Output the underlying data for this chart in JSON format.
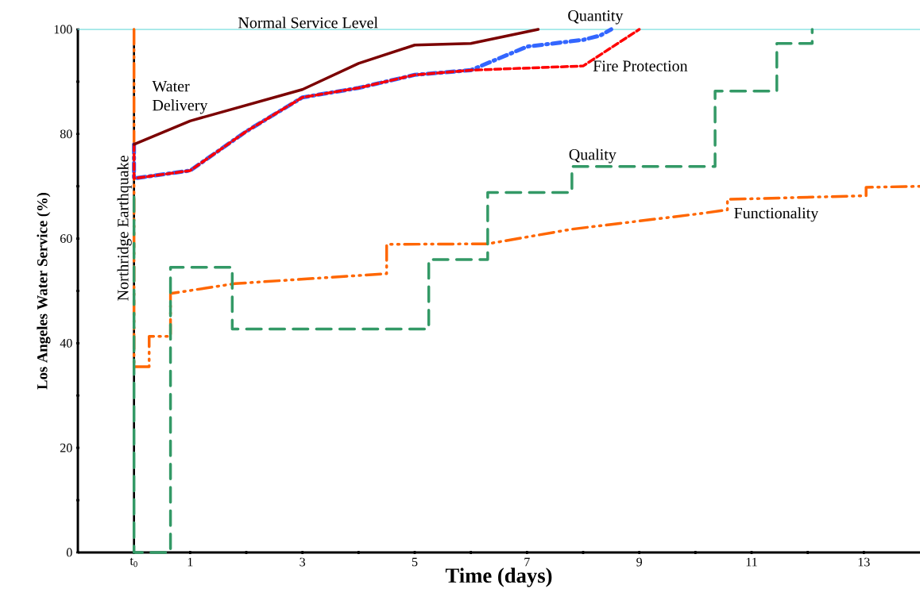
{
  "chart_data": {
    "type": "line",
    "xlabel": "Time (days)",
    "ylabel": "Los Angeles Water Service (%)",
    "xlim": [
      -1,
      14
    ],
    "ylim": [
      0,
      100
    ],
    "xticks": [
      {
        "value": 0,
        "label": "t$_{0}$"
      },
      1,
      {
        "value": 2,
        "label": null
      },
      3,
      {
        "value": 4,
        "label": null
      },
      5,
      {
        "value": 6,
        "label": null
      },
      7,
      {
        "value": 8,
        "label": null
      },
      9,
      {
        "value": 10,
        "label": null
      },
      11,
      {
        "value": 12,
        "label": null
      },
      13
    ],
    "yticks": [
      0,
      {
        "value": 10,
        "label": null
      },
      20,
      {
        "value": 30,
        "label": null
      },
      40,
      {
        "value": 50,
        "label": null
      },
      60,
      {
        "value": 70,
        "label": null
      },
      80,
      {
        "value": 90,
        "label": null
      },
      100
    ],
    "grid": false,
    "marker": "none",
    "ref_lines": [
      {
        "axis": "y",
        "value": 100,
        "label": "Normal Service Level",
        "color": "#80e0e0",
        "line_style": "solid"
      },
      {
        "axis": "x",
        "value": 0,
        "label": "Northridge Earthquake",
        "color": "#000000",
        "line_style": "solid"
      }
    ],
    "series": [
      {
        "name": "Water Delivery",
        "color": "#7b0000",
        "line_style": "solid",
        "x": [
          0,
          1,
          3,
          4,
          5,
          6,
          7.2
        ],
        "values": [
          78,
          82.5,
          88.5,
          93.5,
          97,
          97.3,
          100
        ]
      },
      {
        "name": "Fire Protection",
        "color": "#ff0000",
        "line_style": "dashed",
        "x": [
          0,
          0,
          1,
          2,
          3,
          4,
          5,
          6,
          8,
          9
        ],
        "values": [
          78,
          71.5,
          73,
          80.5,
          87,
          88.8,
          91.3,
          92.2,
          93,
          100
        ]
      },
      {
        "name": "Quantity",
        "color": "#3366ff",
        "line_style": "dash-dot",
        "x": [
          0,
          0,
          1,
          2,
          3,
          4,
          5,
          6,
          7,
          8,
          8.3,
          8.5
        ],
        "values": [
          78,
          71.5,
          73,
          80.5,
          87,
          88.8,
          91.3,
          92.2,
          96.7,
          98,
          98.8,
          100
        ]
      },
      {
        "name": "Quality",
        "color": "#339966",
        "line_style": "long-dashed",
        "x": [
          0,
          0,
          0.65,
          0.65,
          1.75,
          1.75,
          5.25,
          5.25,
          6.3,
          6.3,
          7.8,
          7.8,
          10.35,
          10.35,
          11.45,
          11.45,
          12.08,
          12.08
        ],
        "values": [
          68,
          0,
          0,
          54.5,
          54.5,
          42.7,
          42.7,
          56,
          56,
          68.8,
          68.8,
          73.8,
          73.8,
          88.2,
          88.2,
          97.3,
          97.3,
          100
        ]
      },
      {
        "name": "Functionality",
        "color": "#ff6600",
        "line_style": "dash-dot-dot",
        "x": [
          0,
          0,
          0.27,
          0.27,
          0.65,
          0.65,
          1.8,
          4.5,
          4.5,
          6.3,
          7.8,
          10.1,
          10.57,
          10.57,
          13.04,
          13.04,
          14
        ],
        "values": [
          100,
          35.5,
          35.5,
          41.3,
          41.3,
          49.5,
          51.4,
          53.3,
          58.9,
          59,
          61.8,
          64.8,
          65.5,
          67.5,
          68.2,
          69.8,
          70
        ]
      }
    ]
  }
}
